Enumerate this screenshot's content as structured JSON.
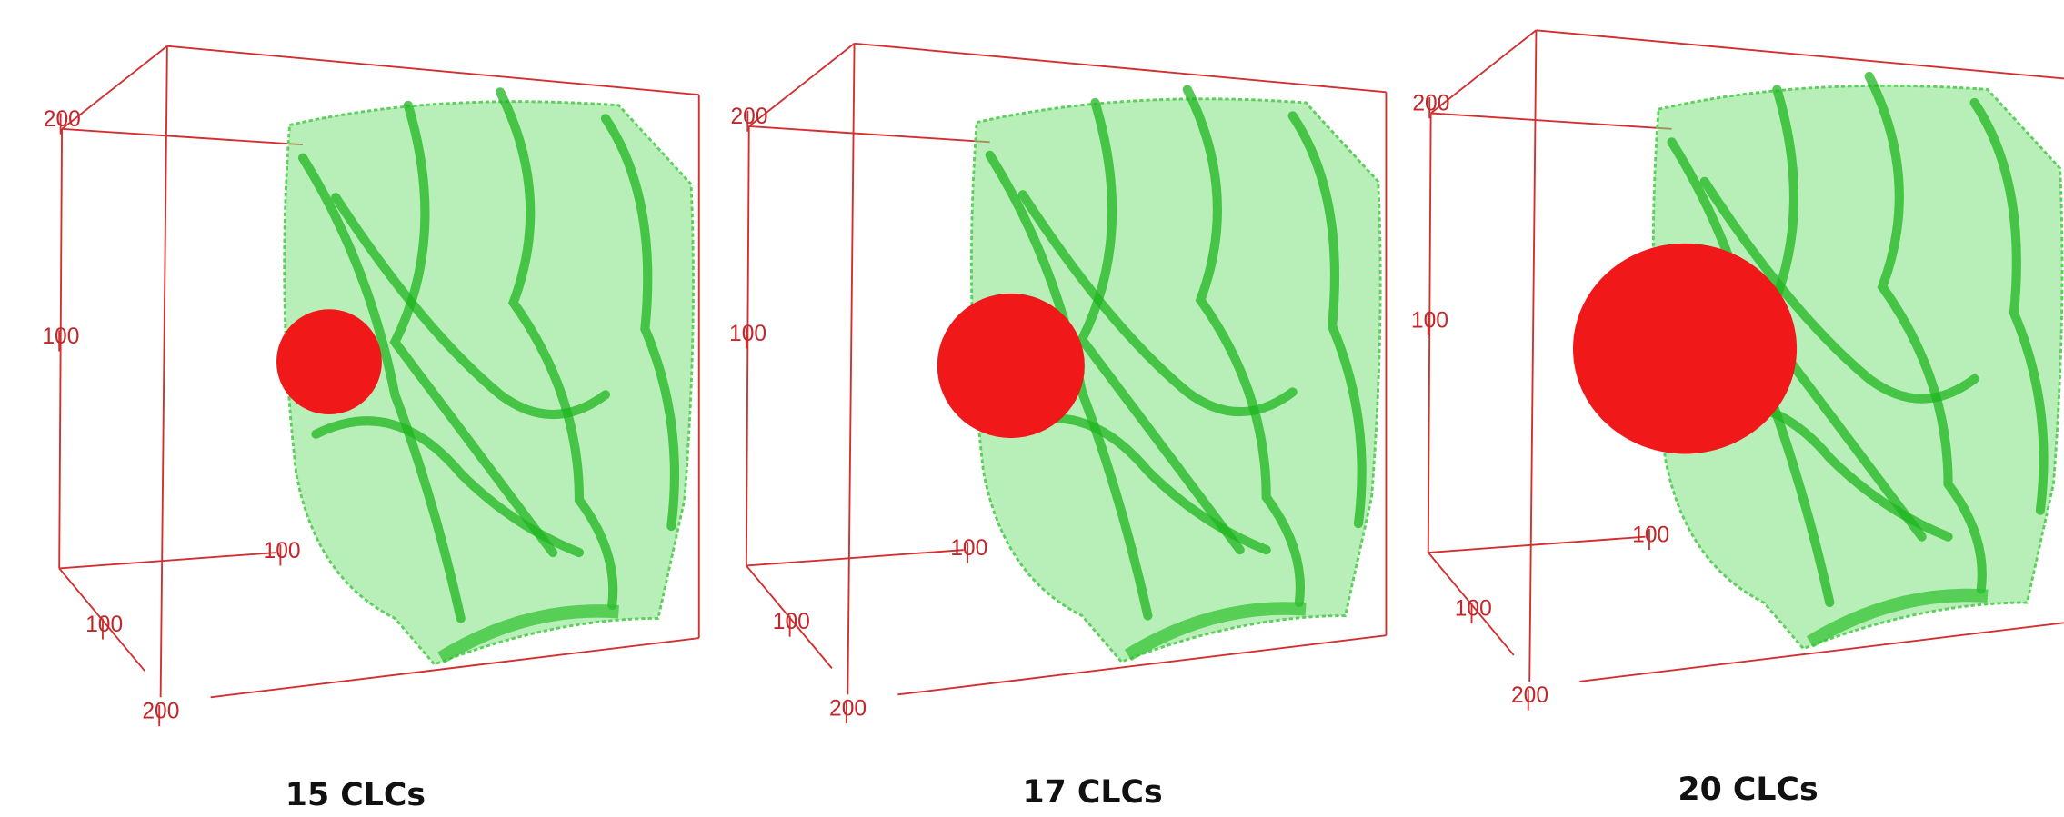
{
  "panels": [
    {
      "caption": "15 CLCs",
      "axis_labels": {
        "top": "200",
        "left": "100",
        "floor": "100",
        "depth": "100",
        "bottom": "200"
      }
    },
    {
      "caption": "17 CLCs",
      "axis_labels": {
        "top": "200",
        "left": "100",
        "floor": "100",
        "depth": "100",
        "bottom": "200"
      }
    },
    {
      "caption": "20 CLCs",
      "axis_labels": {
        "top": "200",
        "left": "100",
        "floor": "100",
        "depth": "100",
        "bottom": "200"
      }
    }
  ]
}
